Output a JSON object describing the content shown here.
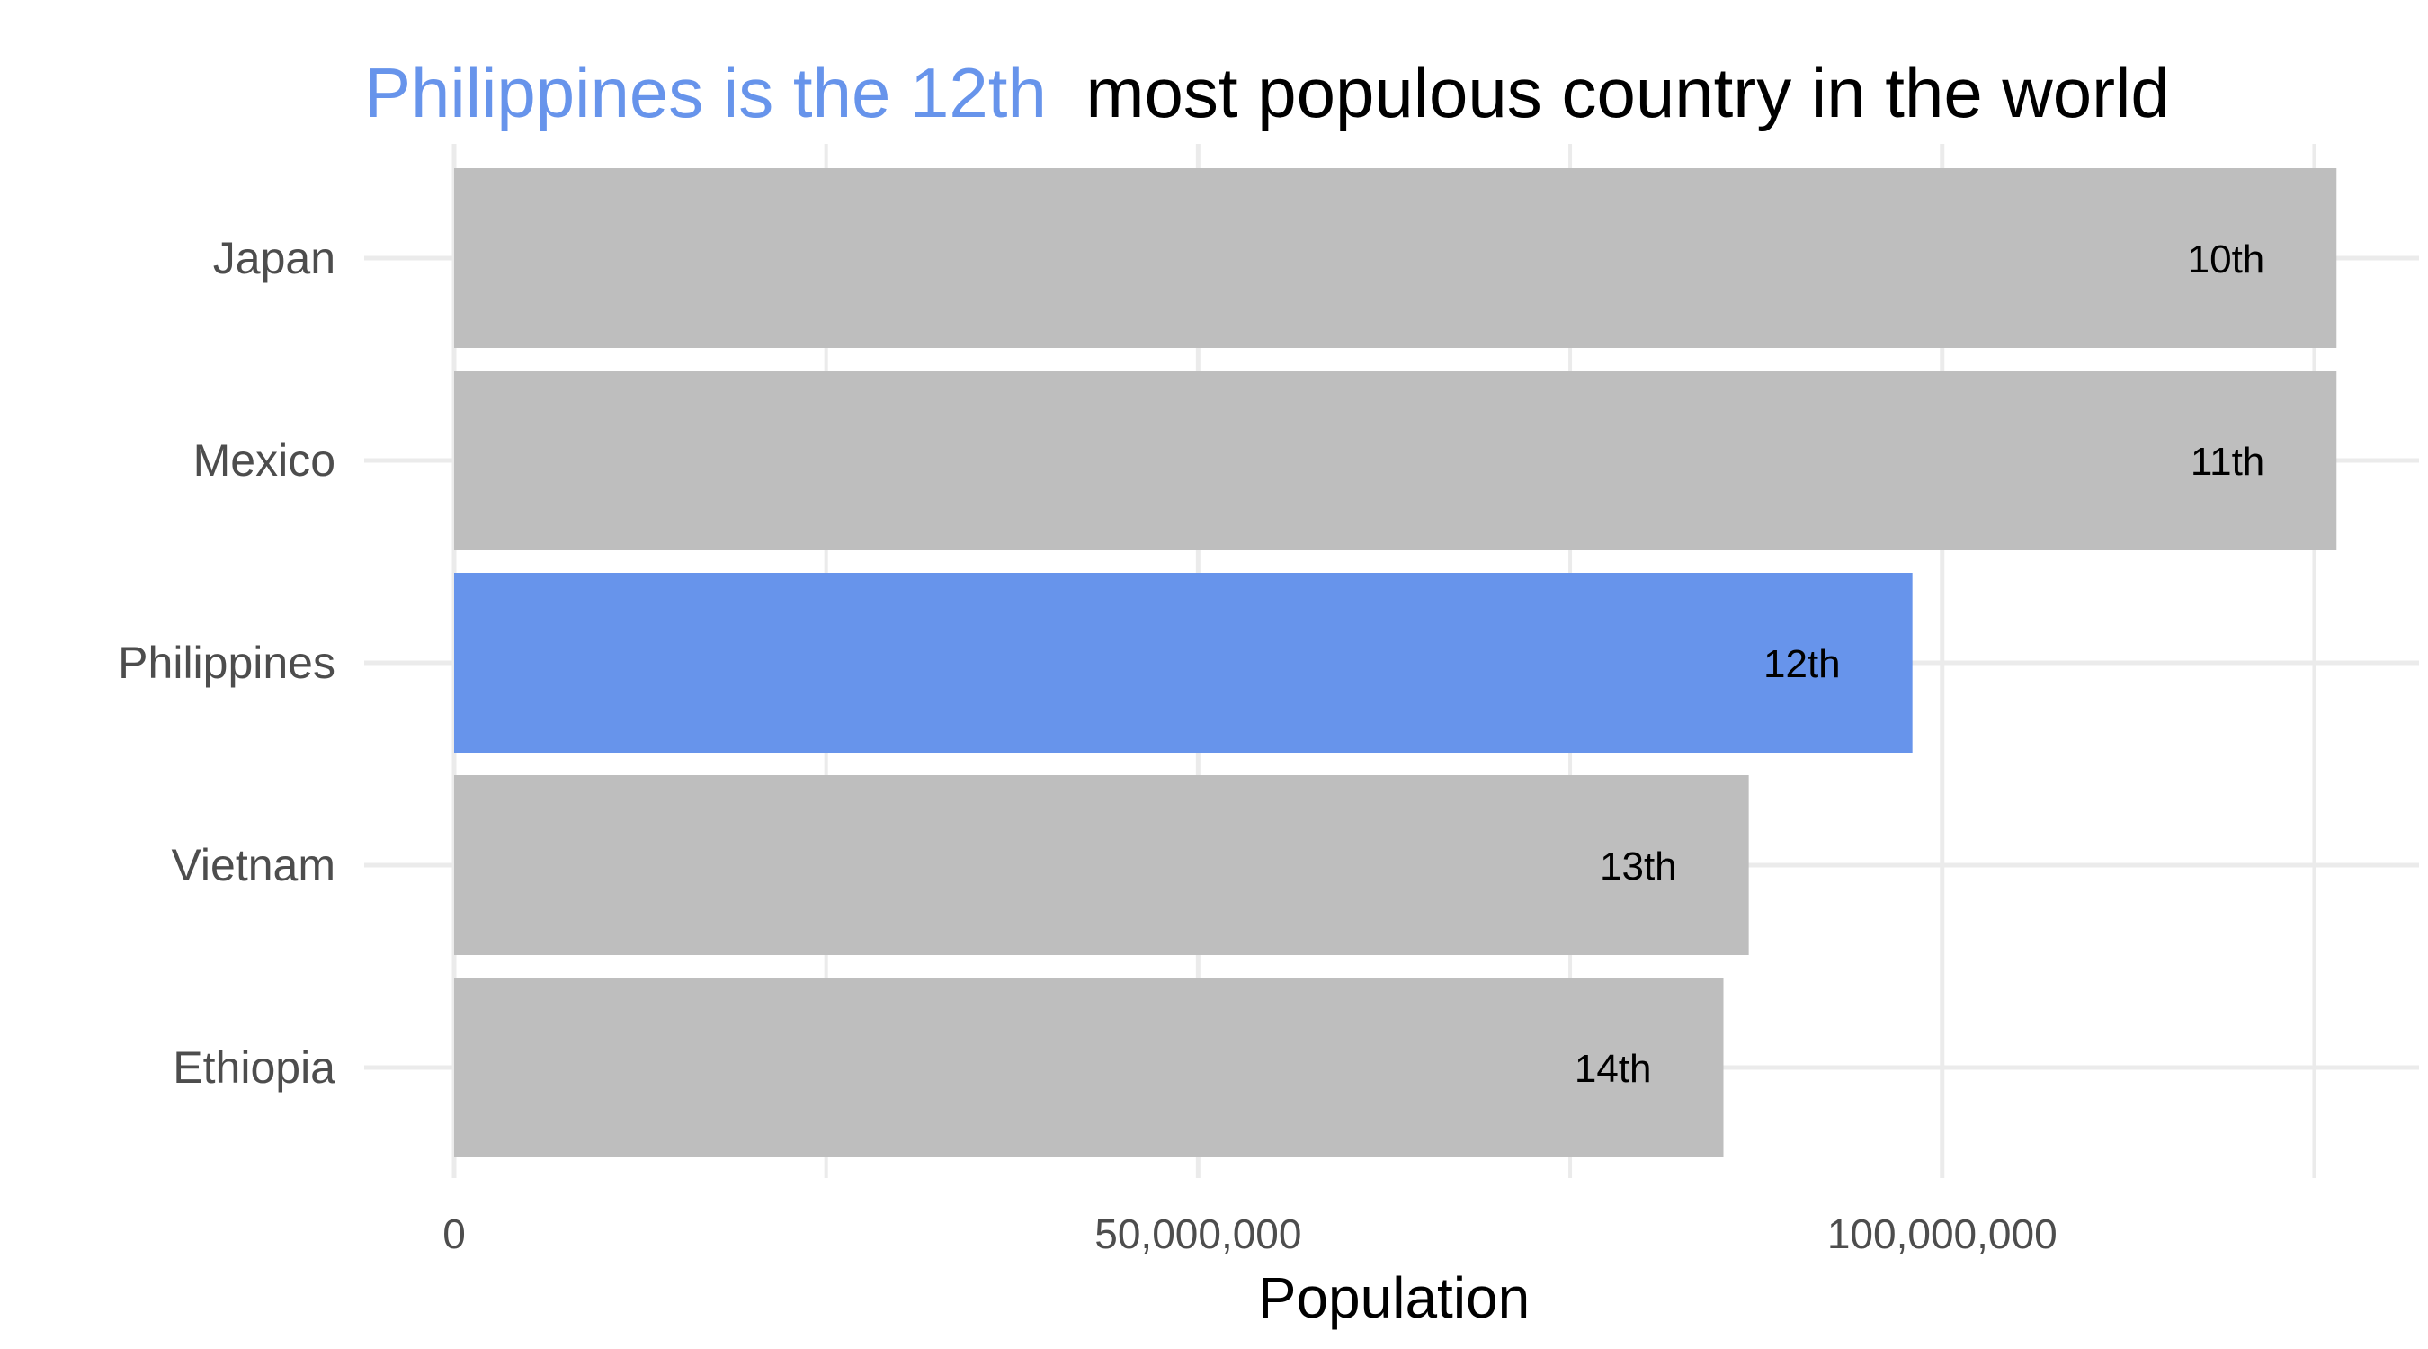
{
  "chart_data": {
    "type": "bar",
    "orientation": "horizontal",
    "title": {
      "highlight": "Philippines is the 12th",
      "rest": "most populous country in the world"
    },
    "categories": [
      "Japan",
      "Mexico",
      "Philippines",
      "Vietnam",
      "Ethiopia"
    ],
    "values": [
      126500000,
      126500000,
      98000000,
      87000000,
      85300000
    ],
    "rank_labels": [
      "10th",
      "11th",
      "12th",
      "13th",
      "14th"
    ],
    "highlight_category": "Philippines",
    "xlabel": "Population",
    "ylabel": "",
    "xlim": [
      0,
      133000000
    ],
    "x_ticks": [
      {
        "value": 0,
        "label": "0"
      },
      {
        "value": 50000000,
        "label": "50,000,000"
      },
      {
        "value": 100000000,
        "label": "100,000,000"
      }
    ],
    "x_minor_gridlines": [
      25000000,
      75000000,
      125000000
    ],
    "grid": true,
    "legend": "none"
  },
  "colors": {
    "highlight": "#6794EB",
    "bar": "#BEBEBE",
    "grid": "#EBEBEB",
    "title_rest": "#000000",
    "axis_text": "#4d4d4d"
  }
}
